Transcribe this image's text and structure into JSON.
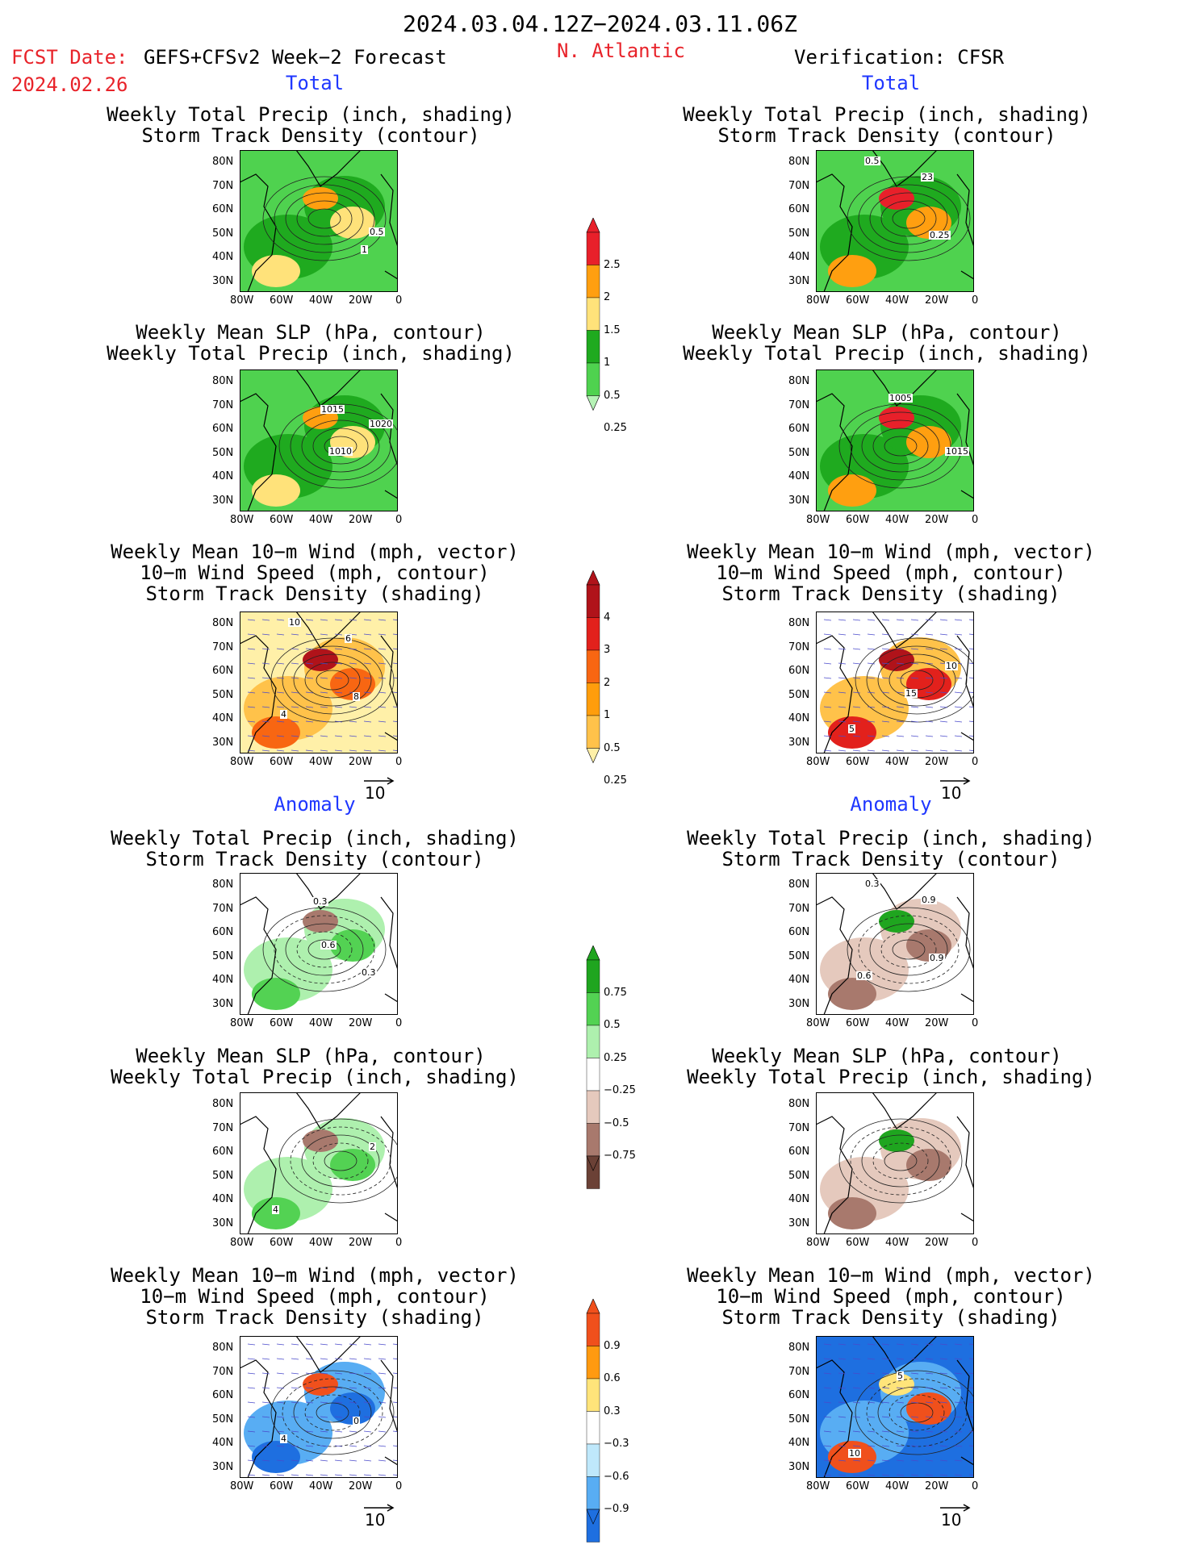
{
  "header": {
    "period": "2024.03.04.12Z−2024.03.11.06Z",
    "fcst_label": "FCST Date:",
    "model": "GEFS+CFSv2 Week−2 Forecast",
    "fcst_date": "2024.02.26",
    "region": "N. Atlantic",
    "verification": "Verification: CFSR"
  },
  "sections": {
    "total_left": "Total",
    "total_right": "Total",
    "anom_left": "Anomaly",
    "anom_right": "Anomaly"
  },
  "titles": {
    "precip_track": [
      "Weekly Total Precip (inch, shading)",
      "Storm Track Density (contour)"
    ],
    "slp_precip": [
      "Weekly Mean SLP (hPa, contour)",
      "Weekly Total Precip (inch, shading)"
    ],
    "wind_track": [
      "Weekly Mean 10−m Wind (mph, vector)",
      "10−m Wind Speed (mph, contour)",
      "Storm Track Density (shading)"
    ]
  },
  "axes": {
    "lat_labels": [
      "80N",
      "70N",
      "60N",
      "50N",
      "40N",
      "30N"
    ],
    "lon_labels": [
      "80W",
      "60W",
      "40W",
      "20W",
      "0"
    ]
  },
  "vector_ref": "10",
  "colorbars": {
    "precip_total": {
      "labels": [
        "2.5",
        "2",
        "1.5",
        "1",
        "0.5",
        "0.25"
      ],
      "colors": [
        "#e8202a",
        "#ff9f10",
        "#ffe27a",
        "#1faa1f",
        "#4fd24f",
        "#b6f2b6"
      ]
    },
    "track_total": {
      "labels": [
        "4",
        "3",
        "2",
        "1",
        "0.5",
        "0.25"
      ],
      "colors": [
        "#b0131a",
        "#e2211c",
        "#f86612",
        "#ff9d0c",
        "#ffc24a",
        "#fff0a8"
      ]
    },
    "precip_anom": {
      "labels": [
        "0.75",
        "0.5",
        "0.25",
        "−0.25",
        "−0.5",
        "−0.75"
      ],
      "colors": [
        "#1fa51f",
        "#53d253",
        "#aef0ae",
        "#ffffff",
        "#e5c9bd",
        "#a8796d",
        "#6b4136"
      ]
    },
    "track_anom": {
      "labels": [
        "0.9",
        "0.6",
        "0.3",
        "−0.3",
        "−0.6",
        "−0.9"
      ],
      "colors": [
        "#f0501c",
        "#ff9a10",
        "#ffe47a",
        "#ffffff",
        "#bfe8fb",
        "#58adf3",
        "#1e6fe0"
      ]
    }
  },
  "panels": [
    {
      "id": "p1",
      "contour_labels": [
        "1",
        "0.5"
      ]
    },
    {
      "id": "p2",
      "contour_labels": [
        "0.25",
        "0.5",
        "23"
      ]
    },
    {
      "id": "p3",
      "contour_labels": [
        "1015",
        "1010",
        "1020"
      ]
    },
    {
      "id": "p4",
      "contour_labels": [
        "1015",
        "1005"
      ]
    },
    {
      "id": "p5",
      "contour_labels": [
        "10",
        "6",
        "4",
        "8"
      ]
    },
    {
      "id": "p6",
      "contour_labels": [
        "15",
        "10",
        "5"
      ]
    },
    {
      "id": "p7",
      "contour_labels": [
        "0.3",
        "0.6",
        "0.3"
      ]
    },
    {
      "id": "p8",
      "contour_labels": [
        "0.9",
        "0.6",
        "0.9",
        "0.3"
      ]
    },
    {
      "id": "p9",
      "contour_labels": [
        "2",
        "4"
      ]
    },
    {
      "id": "p10",
      "contour_labels": []
    },
    {
      "id": "p11",
      "contour_labels": [
        "4",
        "0"
      ]
    },
    {
      "id": "p12",
      "contour_labels": [
        "10",
        "5"
      ]
    }
  ]
}
